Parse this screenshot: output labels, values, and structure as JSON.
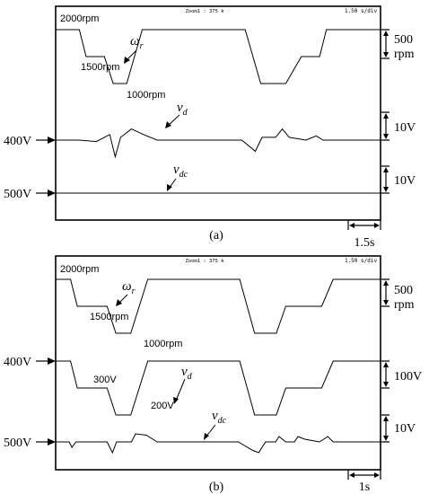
{
  "chart_data": [
    {
      "type": "line",
      "panel_label": "(a)",
      "header": {
        "zoom": "Zoom1 : 375 k",
        "timebase": "1.50 s/div"
      },
      "time_scale": "1.5s",
      "traces": [
        {
          "symbol": "ω",
          "symbol_sub": "r",
          "scale": [
            "500",
            "rpm"
          ],
          "level_labels": [
            "2000rpm",
            "1500rpm",
            "1000rpm"
          ],
          "unit": "rpm",
          "points": [
            [
              0,
              2000
            ],
            [
              0.35,
              2000
            ],
            [
              0.45,
              1500
            ],
            [
              0.72,
              1500
            ],
            [
              0.85,
              1000
            ],
            [
              1.05,
              1000
            ],
            [
              1.28,
              2000
            ],
            [
              2.8,
              2000
            ],
            [
              3.03,
              1000
            ],
            [
              3.4,
              1000
            ],
            [
              3.63,
              1500
            ],
            [
              3.9,
              1500
            ],
            [
              4.0,
              2000
            ],
            [
              4.8,
              2000
            ]
          ]
        },
        {
          "symbol": "v",
          "symbol_sub": "d",
          "scale": [
            "10V"
          ],
          "marker_label": "400V",
          "unit": "V",
          "points": [
            [
              0,
              400
            ],
            [
              0.35,
              400
            ],
            [
              0.6,
              399.5
            ],
            [
              0.8,
              402
            ],
            [
              0.88,
              394
            ],
            [
              0.96,
              401
            ],
            [
              1.12,
              404
            ],
            [
              1.3,
              402
            ],
            [
              1.5,
              400
            ],
            [
              2.75,
              400
            ],
            [
              2.95,
              396
            ],
            [
              3.05,
              401
            ],
            [
              3.25,
              401
            ],
            [
              3.35,
              404
            ],
            [
              3.45,
              401
            ],
            [
              3.7,
              400
            ],
            [
              3.85,
              401.5
            ],
            [
              3.95,
              400
            ],
            [
              4.8,
              400
            ]
          ]
        },
        {
          "symbol": "v",
          "symbol_sub": "dc",
          "scale": [
            "10V"
          ],
          "marker_label": "500V",
          "unit": "V",
          "points": [
            [
              0,
              500
            ],
            [
              4.8,
              500
            ]
          ]
        }
      ]
    },
    {
      "type": "line",
      "panel_label": "(b)",
      "header": {
        "zoom": "Zoom1 : 375 k",
        "timebase": "1.50 s/div"
      },
      "time_scale": "1s",
      "traces": [
        {
          "symbol": "ω",
          "symbol_sub": "r",
          "scale": [
            "500",
            "rpm"
          ],
          "level_labels": [
            "2000rpm",
            "1500rpm",
            "1000rpm"
          ],
          "unit": "rpm",
          "points": [
            [
              0,
              2000
            ],
            [
              0.22,
              2000
            ],
            [
              0.32,
              1500
            ],
            [
              0.76,
              1500
            ],
            [
              0.89,
              1000
            ],
            [
              1.11,
              1000
            ],
            [
              1.36,
              2000
            ],
            [
              2.72,
              2000
            ],
            [
              2.94,
              1000
            ],
            [
              3.26,
              1000
            ],
            [
              3.4,
              1500
            ],
            [
              3.93,
              1500
            ],
            [
              4.1,
              2000
            ],
            [
              4.8,
              2000
            ]
          ]
        },
        {
          "symbol": "v",
          "symbol_sub": "d",
          "scale": [
            "100V"
          ],
          "marker_label": "400V",
          "level_labels": [
            "300V",
            "200V"
          ],
          "unit": "V",
          "points": [
            [
              0,
              400
            ],
            [
              0.22,
              400
            ],
            [
              0.32,
              300
            ],
            [
              0.76,
              300
            ],
            [
              0.89,
              200
            ],
            [
              1.11,
              200
            ],
            [
              1.36,
              400
            ],
            [
              2.72,
              400
            ],
            [
              2.94,
              200
            ],
            [
              3.26,
              200
            ],
            [
              3.4,
              300
            ],
            [
              3.93,
              300
            ],
            [
              4.1,
              400
            ],
            [
              4.8,
              400
            ]
          ]
        },
        {
          "symbol": "v",
          "symbol_sub": "dc",
          "scale": [
            "10V"
          ],
          "marker_label": "500V",
          "unit": "V",
          "points": [
            [
              0,
              500
            ],
            [
              0.2,
              500
            ],
            [
              0.24,
              498
            ],
            [
              0.3,
              500
            ],
            [
              0.76,
              500
            ],
            [
              0.84,
              496
            ],
            [
              0.9,
              500
            ],
            [
              1.12,
              500
            ],
            [
              1.18,
              503
            ],
            [
              1.34,
              502.5
            ],
            [
              1.5,
              500
            ],
            [
              2.7,
              500
            ],
            [
              2.9,
              497
            ],
            [
              3.0,
              496
            ],
            [
              3.1,
              500
            ],
            [
              3.25,
              500
            ],
            [
              3.3,
              502
            ],
            [
              3.4,
              500
            ],
            [
              3.53,
              500
            ],
            [
              3.58,
              502
            ],
            [
              3.68,
              501
            ],
            [
              3.9,
              500
            ],
            [
              4.02,
              502
            ],
            [
              4.1,
              500
            ],
            [
              4.8,
              500
            ]
          ]
        }
      ]
    }
  ]
}
